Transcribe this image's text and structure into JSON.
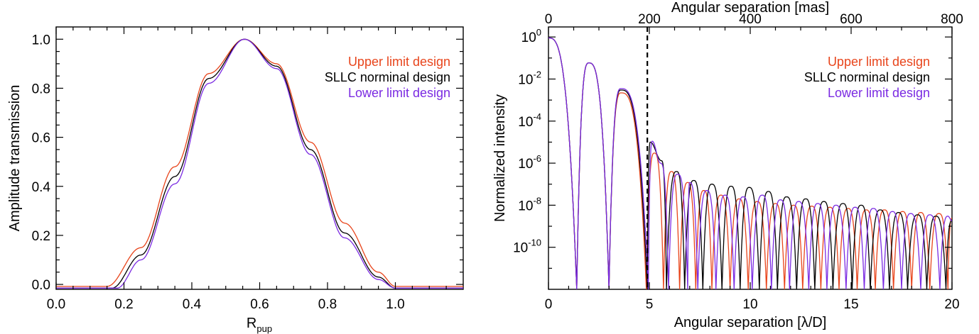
{
  "chart_data": [
    {
      "type": "line",
      "xlabel": "R",
      "xlabel_sub": "pup",
      "ylabel": "Amplitude transmission",
      "xlim": [
        0.0,
        1.2
      ],
      "ylim": [
        -0.02,
        1.05
      ],
      "x_ticks": [
        "0.0",
        "0.2",
        "0.4",
        "0.6",
        "0.8",
        "1.0"
      ],
      "y_ticks": [
        "0.0",
        "0.2",
        "0.4",
        "0.6",
        "0.8",
        "1.0"
      ],
      "legend_position": "top-right",
      "series": [
        {
          "name": "Upper limit design",
          "color": "#e8451c",
          "x": [
            0.0,
            0.15,
            0.25,
            0.35,
            0.45,
            0.555,
            0.65,
            0.75,
            0.85,
            0.95,
            1.0,
            1.2
          ],
          "y": [
            -0.008,
            -0.008,
            0.15,
            0.48,
            0.86,
            1.0,
            0.9,
            0.58,
            0.25,
            0.05,
            -0.008,
            -0.008
          ]
        },
        {
          "name": "SLLC norminal design",
          "color": "#000000",
          "x": [
            0.0,
            0.165,
            0.25,
            0.35,
            0.45,
            0.555,
            0.65,
            0.75,
            0.85,
            0.95,
            1.0,
            1.2
          ],
          "y": [
            -0.015,
            -0.015,
            0.12,
            0.44,
            0.84,
            1.0,
            0.89,
            0.55,
            0.21,
            0.03,
            -0.015,
            -0.015
          ]
        },
        {
          "name": "Lower limit design",
          "color": "#7b2be2",
          "x": [
            0.0,
            0.18,
            0.25,
            0.35,
            0.45,
            0.555,
            0.65,
            0.75,
            0.85,
            0.95,
            1.0,
            1.2
          ],
          "y": [
            -0.015,
            -0.015,
            0.1,
            0.41,
            0.82,
            1.0,
            0.88,
            0.53,
            0.19,
            0.02,
            -0.015,
            -0.015
          ]
        }
      ]
    },
    {
      "type": "line",
      "xlabel": "Angular separation [λ/D]",
      "x2label": "Angular separation [mas]",
      "ylabel": "Normalized intensity",
      "xlim": [
        0,
        20
      ],
      "x2lim": [
        0,
        800
      ],
      "ylog": true,
      "ylim": [
        1e-12,
        3
      ],
      "x_ticks": [
        "0",
        "5",
        "10",
        "15",
        "20"
      ],
      "x2_ticks": [
        "0",
        "200",
        "400",
        "600",
        "800"
      ],
      "y_ticks": [
        {
          "base": "10",
          "exp": "0"
        },
        {
          "base": "10",
          "exp": "-2"
        },
        {
          "base": "10",
          "exp": "-4"
        },
        {
          "base": "10",
          "exp": "-6"
        },
        {
          "base": "10",
          "exp": "-8"
        },
        {
          "base": "10",
          "exp": "-10"
        }
      ],
      "vline_x": 4.9,
      "legend_position": "top-right",
      "series": [
        {
          "name": "Upper limit design",
          "color": "#e8451c",
          "minima": [
            1.4,
            3.0,
            4.85,
            5.7,
            6.5,
            7.3,
            8.1,
            9.0,
            9.9,
            10.8,
            11.7,
            12.6,
            13.5,
            14.4,
            15.3,
            16.2,
            17.1,
            18.0,
            18.9,
            19.8
          ],
          "peaks": [
            [
              0,
              0.9
            ],
            [
              2.0,
              0.058
            ],
            [
              3.6,
              0.0022
            ],
            [
              5.25,
              3e-06
            ],
            [
              6.1,
              4e-07
            ],
            [
              6.9,
              1.2e-07
            ],
            [
              7.7,
              5e-08
            ],
            [
              8.55,
              3e-08
            ],
            [
              9.45,
              2e-08
            ],
            [
              10.35,
              1.5e-08
            ],
            [
              11.25,
              1.2e-08
            ],
            [
              12.15,
              1e-08
            ],
            [
              13.05,
              9e-09
            ],
            [
              13.95,
              8e-09
            ],
            [
              14.85,
              7e-09
            ],
            [
              15.75,
              6e-09
            ],
            [
              16.65,
              6e-09
            ],
            [
              17.55,
              5e-09
            ],
            [
              18.45,
              4.5e-09
            ],
            [
              19.35,
              4e-09
            ]
          ]
        },
        {
          "name": "SLLC norminal design",
          "color": "#000000",
          "minima": [
            1.4,
            3.0,
            4.9,
            5.85,
            6.75,
            7.65,
            8.6,
            9.5,
            10.45,
            11.35,
            12.3,
            13.2,
            14.1,
            15.05,
            15.95,
            16.9,
            17.8,
            18.75,
            19.7
          ],
          "peaks": [
            [
              0,
              0.9
            ],
            [
              2.0,
              0.058
            ],
            [
              3.6,
              0.003
            ],
            [
              5.05,
              1e-05
            ],
            [
              5.6,
              1.3e-06
            ],
            [
              6.35,
              4e-07
            ],
            [
              7.2,
              1.5e-07
            ],
            [
              8.1,
              1e-07
            ],
            [
              9.05,
              8e-08
            ],
            [
              9.95,
              7e-08
            ],
            [
              10.9,
              4.5e-08
            ],
            [
              11.8,
              2.5e-08
            ],
            [
              12.75,
              2e-08
            ],
            [
              13.65,
              1.5e-08
            ],
            [
              14.6,
              1.2e-08
            ],
            [
              15.5,
              1e-08
            ],
            [
              16.45,
              6e-09
            ],
            [
              17.35,
              4.5e-09
            ],
            [
              18.3,
              3.5e-09
            ],
            [
              19.2,
              3e-09
            ]
          ]
        },
        {
          "name": "Lower limit design",
          "color": "#7b2be2",
          "minima": [
            1.4,
            3.0,
            4.95,
            5.95,
            6.9,
            7.4,
            8.3,
            9.2,
            10.1,
            11.05,
            11.95,
            12.9,
            13.8,
            14.75,
            15.65,
            16.6,
            17.5,
            18.45,
            19.4
          ],
          "peaks": [
            [
              0,
              0.9
            ],
            [
              2.0,
              0.058
            ],
            [
              3.6,
              0.0035
            ],
            [
              5.15,
              1.1e-05
            ],
            [
              5.55,
              1e-06
            ],
            [
              6.4,
              3e-07
            ],
            [
              7.0,
              1.2e-07
            ],
            [
              7.85,
              5e-08
            ],
            [
              8.75,
              3e-08
            ],
            [
              9.65,
              2.5e-08
            ],
            [
              10.6,
              3e-08
            ],
            [
              11.5,
              1.8e-08
            ],
            [
              12.4,
              1.5e-08
            ],
            [
              13.35,
              1.2e-08
            ],
            [
              14.25,
              1e-08
            ],
            [
              15.2,
              8e-09
            ],
            [
              16.1,
              7e-09
            ],
            [
              17.05,
              5e-09
            ],
            [
              17.95,
              4e-09
            ],
            [
              18.9,
              3.5e-09
            ],
            [
              19.8,
              3e-09
            ]
          ]
        }
      ]
    }
  ]
}
